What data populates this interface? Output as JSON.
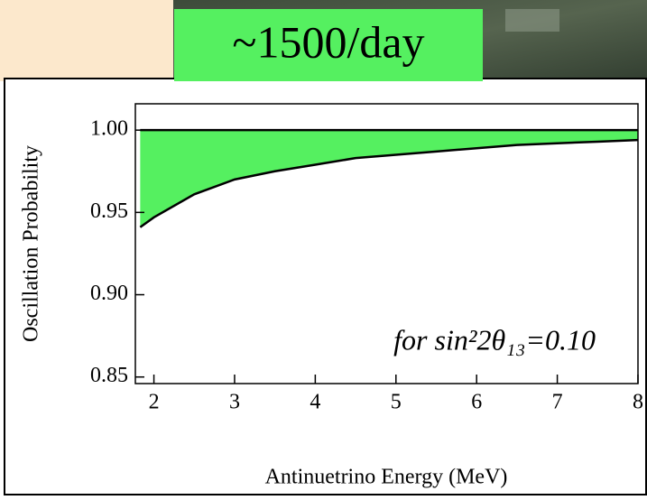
{
  "chart_data": {
    "type": "area",
    "badge": "~1500/day",
    "annotation": "for sin²2θ₁₃=0.10",
    "xlabel": "Antinuetrino Energy (MeV)",
    "ylabel": "Oscillation Probability",
    "x": [
      1.83,
      2,
      2.5,
      3,
      3.5,
      4,
      4.5,
      5,
      5.5,
      6,
      6.5,
      7,
      7.5,
      8
    ],
    "series": [
      {
        "color": "#000000",
        "values": [
          1,
          1,
          1,
          1,
          1,
          1,
          1,
          1,
          1,
          1,
          1,
          1,
          1,
          1
        ]
      },
      {
        "color": "#000000",
        "values": [
          0.941,
          0.947,
          0.961,
          0.97,
          0.975,
          0.979,
          0.983,
          0.985,
          0.987,
          0.989,
          0.991,
          0.992,
          0.993,
          0.994
        ]
      }
    ],
    "fill": "#55f060",
    "xlim": [
      1.77,
      8.0
    ],
    "ylim": [
      0.846,
      1.016
    ],
    "xticks": [
      2,
      3,
      4,
      5,
      6,
      7,
      8
    ],
    "yticks": [
      {
        "value": 1,
        "label": "1.00"
      },
      0.95,
      {
        "value": 0.9,
        "label": "0.90"
      },
      0.85
    ]
  }
}
